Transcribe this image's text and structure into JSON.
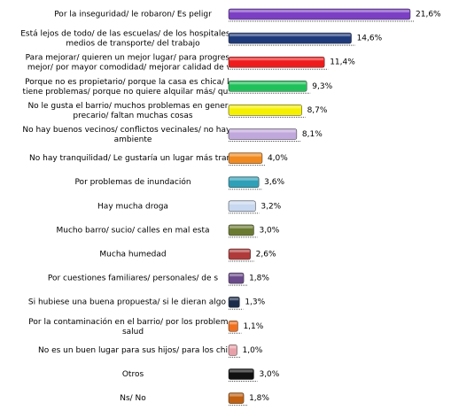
{
  "chart_data": {
    "type": "bar",
    "orientation": "horizontal",
    "categories": [
      "Por la inseguridad/ le robaron/ Es peligr",
      "Está lejos de todo/ de las escuelas/ de los hospitales/ de\nmedios de transporte/ del trabajo",
      "Para mejorar/ quieren un mejor lugar/ para progresar/\nmejor/ por mayor comodidad/ mejorar calidad de vid",
      "Porque no es propietario/ porque la casa es chica/ la c\ntiene problemas/ porque no quiere alquilar más/ quiere",
      "No le gusta el barrio/ muchos problemas en general/\nprecario/ faltan muchas cosas",
      "No hay buenos vecinos/ conflictos vecinales/ no hay bu\nambiente",
      "No hay tranquilidad/ Le gustaría un lugar más tranq",
      "Por problemas de inundación",
      "Hay mucha droga",
      "Mucho barro/ sucio/ calles en mal esta",
      "Mucha humedad",
      "Por cuestiones familiares/ personales/ de s",
      "Si hubiese una buena propuesta/ si le dieran algo se",
      "Por la contaminación en el barrio/ por los problemas\nsalud",
      "No es un buen lugar para sus hijos/ para los chi",
      "Otros",
      "Ns/ No"
    ],
    "values": [
      21.6,
      14.6,
      11.4,
      9.3,
      8.7,
      8.1,
      4.0,
      3.6,
      3.2,
      3.0,
      2.6,
      1.8,
      1.3,
      1.1,
      1.0,
      3.0,
      1.8
    ],
    "value_labels": [
      "21,6%",
      "14,6%",
      "11,4%",
      "9,3%",
      "8,7%",
      "8,1%",
      "4,0%",
      "3,6%",
      "3,2%",
      "3,0%",
      "2,6%",
      "1,8%",
      "1,3%",
      "1,1%",
      "1,0%",
      "3,0%",
      "1,8%"
    ],
    "colors": [
      "#7b3fc4",
      "#1f3a7a",
      "#ee1c1c",
      "#20c05a",
      "#f5f000",
      "#c0a8dc",
      "#f08a20",
      "#2fa0b8",
      "#c8d8f0",
      "#6a7a30",
      "#b03a3a",
      "#6a4a8a",
      "#1a2a4a",
      "#f07020",
      "#e8a0a8",
      "#111111",
      "#c06010"
    ]
  }
}
